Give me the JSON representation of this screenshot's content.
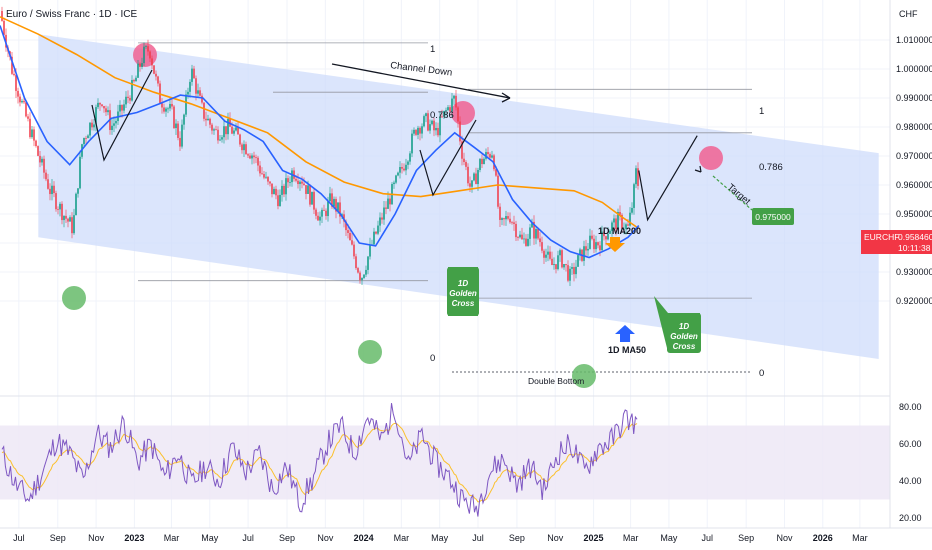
{
  "header": {
    "title": "Euro / Swiss Franc · 1D · ICE",
    "currency": "CHF"
  },
  "price_badge": {
    "symbol": "EURCHF",
    "price": "0.958460",
    "countdown": "10:11:38",
    "color": "#f23645"
  },
  "colors": {
    "candle_up": "#089981",
    "candle_down": "#f23645",
    "ma50": "#2962ff",
    "ma200": "#ff9800",
    "channel_fill": "#cfdcfb",
    "rsi_line": "#7e57c2",
    "rsi_signal": "#fbc02d",
    "rsi_band": "#ede7f6",
    "green_box": "#43a047",
    "green_circle": "#66bb6a",
    "red_circle": "#f06292"
  },
  "annotations": {
    "channel_down": "Channel Down",
    "fib_top_left": "1",
    "fib_786_left": "0.786",
    "fib_1_right": "1",
    "fib_786_right": "0.786",
    "fib_0_left": "0",
    "fib_0_right": "0",
    "double_bottom": "Double Bottom",
    "ma200_label": "1D MA200",
    "ma50_label": "1D MA50",
    "target_label": "Target",
    "target_value": "0.975000",
    "golden_cross_1": [
      "1D",
      "Golden",
      "Cross"
    ],
    "golden_cross_2": [
      "1D",
      "Golden",
      "Cross"
    ]
  },
  "chart_data": [
    {
      "type": "candlestick",
      "title": "Euro / Swiss Franc · 1D · ICE",
      "ylabel": "CHF",
      "ylim": [
        0.915,
        1.017
      ],
      "y_ticks": [
        1.01,
        1.0,
        0.99,
        0.98,
        0.97,
        0.96,
        0.95,
        0.94,
        0.93,
        0.92
      ],
      "y_tick_labels": [
        "1.010000",
        "1.000000",
        "0.990000",
        "0.980000",
        "0.970000",
        "0.960000",
        "0.950000",
        "0.940000",
        "0.930000",
        "0.920000"
      ],
      "x_tick_labels": [
        "Jul",
        "Sep",
        "Nov",
        "2023",
        "Mar",
        "May",
        "Jul",
        "Sep",
        "Nov",
        "2024",
        "Mar",
        "May",
        "Jul",
        "Sep",
        "Nov",
        "2025",
        "Mar",
        "May",
        "Jul",
        "Sep",
        "Nov",
        "2026",
        "Mar"
      ],
      "x_tick_dates": [
        "2022-07",
        "2022-09",
        "2022-11",
        "2023-01",
        "2023-03",
        "2023-05",
        "2023-07",
        "2023-09",
        "2023-11",
        "2024-01",
        "2024-03",
        "2024-05",
        "2024-07",
        "2024-09",
        "2024-11",
        "2025-01",
        "2025-03",
        "2025-05",
        "2025-07",
        "2025-09",
        "2025-11",
        "2026-01",
        "2026-03"
      ],
      "price_path": [
        {
          "date": "2022-06-01",
          "close": 1.02
        },
        {
          "date": "2022-06-20",
          "close": 1.0
        },
        {
          "date": "2022-07-10",
          "close": 0.985
        },
        {
          "date": "2022-08-01",
          "close": 0.97
        },
        {
          "date": "2022-08-20",
          "close": 0.958
        },
        {
          "date": "2022-09-10",
          "close": 0.95
        },
        {
          "date": "2022-09-25",
          "close": 0.945
        },
        {
          "date": "2022-10-10",
          "close": 0.975
        },
        {
          "date": "2022-10-25",
          "close": 0.982
        },
        {
          "date": "2022-11-10",
          "close": 0.99
        },
        {
          "date": "2022-11-25",
          "close": 0.98
        },
        {
          "date": "2022-12-10",
          "close": 0.985
        },
        {
          "date": "2023-01-01",
          "close": 0.995
        },
        {
          "date": "2023-01-15",
          "close": 1.005
        },
        {
          "date": "2023-01-25",
          "close": 1.007
        },
        {
          "date": "2023-02-10",
          "close": 0.99
        },
        {
          "date": "2023-03-01",
          "close": 0.985
        },
        {
          "date": "2023-03-15",
          "close": 0.975
        },
        {
          "date": "2023-04-01",
          "close": 1.0
        },
        {
          "date": "2023-04-20",
          "close": 0.985
        },
        {
          "date": "2023-05-10",
          "close": 0.978
        },
        {
          "date": "2023-06-01",
          "close": 0.98
        },
        {
          "date": "2023-06-20",
          "close": 0.975
        },
        {
          "date": "2023-07-10",
          "close": 0.97
        },
        {
          "date": "2023-08-01",
          "close": 0.96
        },
        {
          "date": "2023-08-20",
          "close": 0.955
        },
        {
          "date": "2023-09-10",
          "close": 0.965
        },
        {
          "date": "2023-09-25",
          "close": 0.962
        },
        {
          "date": "2023-10-10",
          "close": 0.955
        },
        {
          "date": "2023-10-25",
          "close": 0.948
        },
        {
          "date": "2023-11-10",
          "close": 0.955
        },
        {
          "date": "2023-11-25",
          "close": 0.95
        },
        {
          "date": "2023-12-10",
          "close": 0.94
        },
        {
          "date": "2023-12-28",
          "close": 0.928
        },
        {
          "date": "2024-01-15",
          "close": 0.94
        },
        {
          "date": "2024-02-01",
          "close": 0.95
        },
        {
          "date": "2024-02-20",
          "close": 0.96
        },
        {
          "date": "2024-03-10",
          "close": 0.97
        },
        {
          "date": "2024-03-25",
          "close": 0.98
        },
        {
          "date": "2024-04-10",
          "close": 0.982
        },
        {
          "date": "2024-04-25",
          "close": 0.978
        },
        {
          "date": "2024-05-10",
          "close": 0.985
        },
        {
          "date": "2024-05-25",
          "close": 0.99
        },
        {
          "date": "2024-06-05",
          "close": 0.972
        },
        {
          "date": "2024-06-20",
          "close": 0.958
        },
        {
          "date": "2024-07-05",
          "close": 0.968
        },
        {
          "date": "2024-07-25",
          "close": 0.972
        },
        {
          "date": "2024-08-05",
          "close": 0.945
        },
        {
          "date": "2024-08-20",
          "close": 0.95
        },
        {
          "date": "2024-09-10",
          "close": 0.94
        },
        {
          "date": "2024-09-25",
          "close": 0.945
        },
        {
          "date": "2024-10-10",
          "close": 0.94
        },
        {
          "date": "2024-10-25",
          "close": 0.932
        },
        {
          "date": "2024-11-10",
          "close": 0.935
        },
        {
          "date": "2024-11-25",
          "close": 0.928
        },
        {
          "date": "2024-12-10",
          "close": 0.935
        },
        {
          "date": "2024-12-25",
          "close": 0.94
        },
        {
          "date": "2025-01-10",
          "close": 0.94
        },
        {
          "date": "2025-01-25",
          "close": 0.945
        },
        {
          "date": "2025-02-10",
          "close": 0.948
        },
        {
          "date": "2025-02-25",
          "close": 0.945
        },
        {
          "date": "2025-03-05",
          "close": 0.955
        },
        {
          "date": "2025-03-10",
          "close": 0.965
        },
        {
          "date": "2025-03-14",
          "close": 0.9585
        }
      ],
      "ma50": [
        {
          "date": "2022-06-01",
          "value": 1.015
        },
        {
          "date": "2022-07-10",
          "value": 0.99
        },
        {
          "date": "2022-08-15",
          "value": 0.975
        },
        {
          "date": "2022-09-20",
          "value": 0.967
        },
        {
          "date": "2022-10-20",
          "value": 0.975
        },
        {
          "date": "2022-11-25",
          "value": 0.983
        },
        {
          "date": "2023-01-05",
          "value": 0.985
        },
        {
          "date": "2023-02-10",
          "value": 0.988
        },
        {
          "date": "2023-03-15",
          "value": 0.991
        },
        {
          "date": "2023-04-20",
          "value": 0.99
        },
        {
          "date": "2023-05-25",
          "value": 0.982
        },
        {
          "date": "2023-06-25",
          "value": 0.979
        },
        {
          "date": "2023-07-25",
          "value": 0.975
        },
        {
          "date": "2023-08-25",
          "value": 0.965
        },
        {
          "date": "2023-09-25",
          "value": 0.962
        },
        {
          "date": "2023-10-25",
          "value": 0.957
        },
        {
          "date": "2023-11-25",
          "value": 0.95
        },
        {
          "date": "2023-12-25",
          "value": 0.94
        },
        {
          "date": "2024-01-20",
          "value": 0.939
        },
        {
          "date": "2024-02-20",
          "value": 0.95
        },
        {
          "date": "2024-03-25",
          "value": 0.965
        },
        {
          "date": "2024-04-25",
          "value": 0.972
        },
        {
          "date": "2024-05-25",
          "value": 0.978
        },
        {
          "date": "2024-06-25",
          "value": 0.973
        },
        {
          "date": "2024-07-25",
          "value": 0.968
        },
        {
          "date": "2024-08-25",
          "value": 0.955
        },
        {
          "date": "2024-09-25",
          "value": 0.947
        },
        {
          "date": "2024-10-25",
          "value": 0.941
        },
        {
          "date": "2024-11-25",
          "value": 0.937
        },
        {
          "date": "2024-12-25",
          "value": 0.935
        },
        {
          "date": "2025-01-25",
          "value": 0.938
        },
        {
          "date": "2025-02-25",
          "value": 0.942
        },
        {
          "date": "2025-03-14",
          "value": 0.946
        }
      ],
      "ma200": [
        {
          "date": "2022-06-01",
          "value": 1.018
        },
        {
          "date": "2022-08-01",
          "value": 1.012
        },
        {
          "date": "2022-10-01",
          "value": 1.005
        },
        {
          "date": "2022-12-01",
          "value": 0.997
        },
        {
          "date": "2023-02-01",
          "value": 0.992
        },
        {
          "date": "2023-04-01",
          "value": 0.988
        },
        {
          "date": "2023-06-01",
          "value": 0.983
        },
        {
          "date": "2023-08-01",
          "value": 0.978
        },
        {
          "date": "2023-10-01",
          "value": 0.968
        },
        {
          "date": "2023-12-01",
          "value": 0.961
        },
        {
          "date": "2024-02-01",
          "value": 0.957
        },
        {
          "date": "2024-04-01",
          "value": 0.956
        },
        {
          "date": "2024-06-01",
          "value": 0.958
        },
        {
          "date": "2024-08-01",
          "value": 0.96
        },
        {
          "date": "2024-10-01",
          "value": 0.959
        },
        {
          "date": "2024-12-01",
          "value": 0.958
        },
        {
          "date": "2025-01-15",
          "value": 0.954
        },
        {
          "date": "2025-02-15",
          "value": 0.949
        },
        {
          "date": "2025-03-14",
          "value": 0.945
        }
      ],
      "channel": {
        "upper": [
          {
            "date": "2022-08-01",
            "value": 1.012
          },
          {
            "date": "2026-03-31",
            "value": 0.971
          }
        ],
        "lower": [
          {
            "date": "2022-08-01",
            "value": 0.942
          },
          {
            "date": "2026-03-31",
            "value": 0.9
          }
        ]
      },
      "fib_levels": [
        {
          "label": "1",
          "value": 1.009
        },
        {
          "label": "0.786",
          "value": 0.992
        },
        {
          "label": "0",
          "value": 0.927
        },
        {
          "label": "1",
          "value": 0.993
        },
        {
          "label": "0.786",
          "value": 0.978
        },
        {
          "label": "0",
          "value": 0.921
        }
      ],
      "projection": [
        {
          "date": "2025-03-14",
          "value": 0.965
        },
        {
          "date": "2025-03-28",
          "value": 0.948
        },
        {
          "date": "2025-06-15",
          "value": 0.977
        }
      ],
      "target": 0.975
    },
    {
      "type": "line",
      "title": "",
      "ylim": [
        15,
        85
      ],
      "y_ticks": [
        80,
        60,
        40,
        20
      ],
      "y_tick_labels": [
        "80.00",
        "60.00",
        "40.00",
        "20.00"
      ],
      "band": [
        30,
        70
      ],
      "series": [
        {
          "values": [
            55,
            38,
            30,
            45,
            62,
            55,
            40,
            66,
            58,
            72,
            50,
            60,
            42,
            55,
            38,
            48,
            40,
            58,
            45,
            55,
            35,
            48,
            28,
            42,
            60,
            70,
            55,
            75,
            62,
            80,
            48,
            65,
            50,
            42,
            30,
            25,
            45,
            52,
            38,
            48,
            35,
            55,
            60,
            45,
            58,
            62,
            74,
            70
          ]
        }
      ]
    }
  ]
}
